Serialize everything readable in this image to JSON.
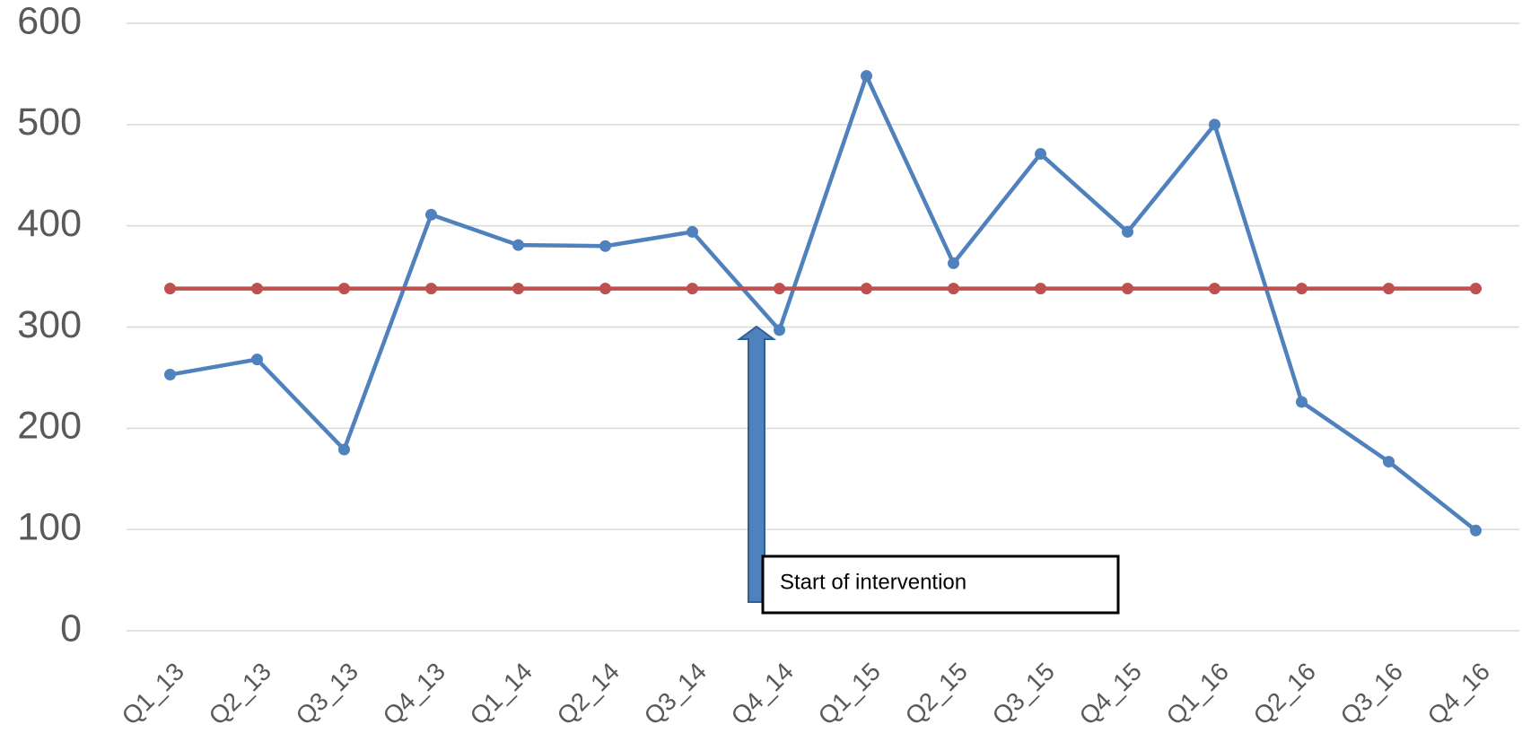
{
  "chart_data": {
    "type": "line",
    "categories": [
      "Q1_13",
      "Q2_13",
      "Q3_13",
      "Q4_13",
      "Q1_14",
      "Q2_14",
      "Q3_14",
      "Q4_14",
      "Q1_15",
      "Q2_15",
      "Q3_15",
      "Q4_15",
      "Q1_16",
      "Q2_16",
      "Q3_16",
      "Q4_16"
    ],
    "series": [
      {
        "color": "#4f81bd",
        "values": [
          253,
          268,
          179,
          411,
          381,
          380,
          394,
          297,
          548,
          363,
          471,
          394,
          500,
          226,
          167,
          99
        ]
      },
      {
        "color": "#c0504d",
        "values": [
          338,
          338,
          338,
          338,
          338,
          338,
          338,
          338,
          338,
          338,
          338,
          338,
          338,
          338,
          338,
          338
        ]
      }
    ],
    "ylim": [
      0,
      600
    ],
    "yticks": [
      0,
      100,
      200,
      300,
      400,
      500,
      600
    ],
    "grid": true,
    "annotations": [
      {
        "text": "Start of intervention"
      }
    ]
  }
}
